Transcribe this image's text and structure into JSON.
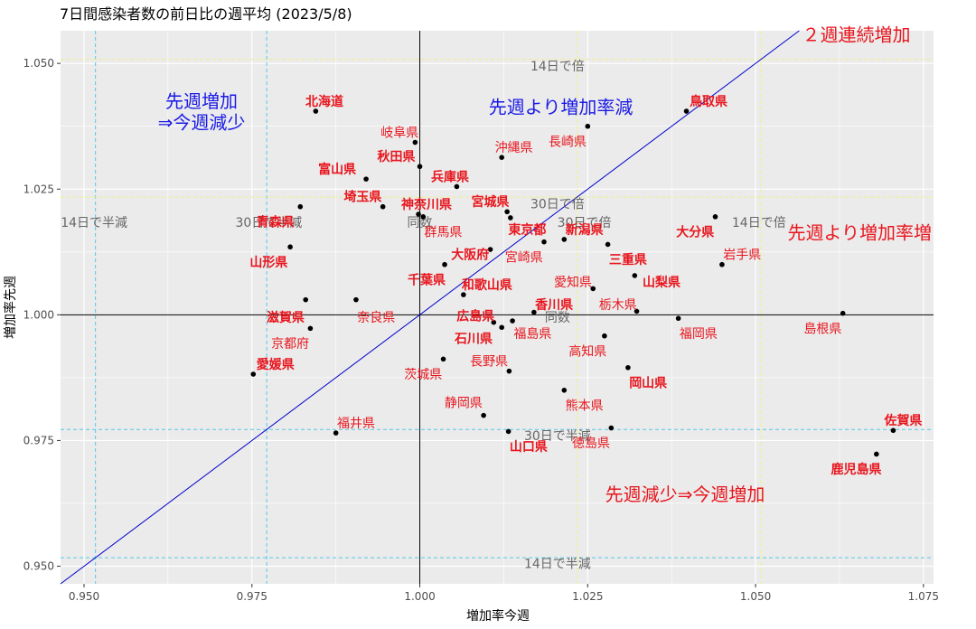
{
  "chart_data": {
    "type": "scatter",
    "title": "7日間感染者数の前日比の週平均 (2023/5/8)",
    "xlabel": "増加率今週",
    "ylabel": "増加率先週",
    "xlim": [
      0.9465,
      1.0765
    ],
    "ylim": [
      0.9465,
      1.0565
    ],
    "x_ticks": [
      "0.950",
      "0.975",
      "1.000",
      "1.025",
      "1.050",
      "1.075"
    ],
    "x_tick_values": [
      0.95,
      0.975,
      1.0,
      1.025,
      1.05,
      1.075
    ],
    "y_ticks": [
      "0.950",
      "0.975",
      "1.000",
      "1.025",
      "1.050"
    ],
    "y_tick_values": [
      0.95,
      0.975,
      1.0,
      1.025,
      1.05
    ],
    "grid": true,
    "colors": {
      "panel": "#ebebeb",
      "grid": "#ffffff",
      "point": "#000000",
      "label_red": "#e8161e",
      "label_blue": "#1a1ae6",
      "diagonal": "#0000cc",
      "ref_cyan": "#56c8e6",
      "ref_yellow": "#f0f08a",
      "ref_text": "#666666"
    },
    "reference_lines": {
      "vertical": [
        {
          "x": 0.9517,
          "color": "cyan"
        },
        {
          "x": 0.9772,
          "color": "cyan"
        },
        {
          "x": 1.0234,
          "color": "yellow"
        },
        {
          "x": 1.0508,
          "color": "yellow"
        }
      ],
      "horizontal": [
        {
          "y": 0.9517,
          "color": "cyan"
        },
        {
          "y": 0.9772,
          "color": "cyan"
        },
        {
          "y": 1.0234,
          "color": "yellow"
        },
        {
          "y": 1.0508,
          "color": "yellow"
        }
      ]
    },
    "reference_labels": [
      {
        "text": "14日で倍",
        "x": 1.0205,
        "y": 1.0495
      },
      {
        "text": "30日で倍",
        "x": 1.0205,
        "y": 1.0221
      },
      {
        "text": "30日で倍",
        "x": 1.0245,
        "y": 1.0184
      },
      {
        "text": "14日で倍",
        "x": 1.0505,
        "y": 1.0184
      },
      {
        "text": "14日で半減",
        "x": 0.9515,
        "y": 1.0184
      },
      {
        "text": "30日で半減",
        "x": 0.9775,
        "y": 1.0184
      },
      {
        "text": "同数",
        "x": 1.0,
        "y": 1.0184
      },
      {
        "text": "同数",
        "x": 1.0205,
        "y": 0.9995
      },
      {
        "text": "30日で半減",
        "x": 1.0205,
        "y": 0.976
      },
      {
        "text": "14日で半減",
        "x": 1.0205,
        "y": 0.9505
      }
    ],
    "annotations": [
      {
        "text": "先週増加",
        "x": 0.9675,
        "y": 1.0425,
        "color": "blue"
      },
      {
        "text": "⇒今週減少",
        "x": 0.9675,
        "y": 1.0383,
        "color": "blue"
      },
      {
        "text": "先週より増加率減",
        "x": 1.021,
        "y": 1.0413,
        "color": "blue"
      },
      {
        "text": "２週連続増加",
        "x": 1.065,
        "y": 1.0557,
        "color": "red"
      },
      {
        "text": "先週より増加率増",
        "x": 1.0655,
        "y": 1.0163,
        "color": "red"
      },
      {
        "text": "先週減少⇒今週増加",
        "x": 1.0395,
        "y": 0.9643,
        "color": "red"
      }
    ],
    "points": [
      {
        "name": "北海道",
        "x": 0.9845,
        "y": 1.0405,
        "lx": 0.9858,
        "ly": 1.0425,
        "bold": true
      },
      {
        "name": "岐阜県",
        "x": 0.9993,
        "y": 1.0343,
        "lx": 0.997,
        "ly": 1.0363,
        "bold": false
      },
      {
        "name": "秋田県",
        "x": 1.0,
        "y": 1.0295,
        "lx": 0.9965,
        "ly": 1.0315,
        "bold": true
      },
      {
        "name": "富山県",
        "x": 0.992,
        "y": 1.027,
        "lx": 0.9877,
        "ly": 1.029,
        "bold": true
      },
      {
        "name": "兵庫県",
        "x": 1.0055,
        "y": 1.0255,
        "lx": 1.0045,
        "ly": 1.0275,
        "bold": true
      },
      {
        "name": "埼玉県",
        "x": 0.9945,
        "y": 1.0215,
        "lx": 0.9915,
        "ly": 1.0235,
        "bold": true
      },
      {
        "name": "神奈川県",
        "x": 0.9998,
        "y": 1.02,
        "lx": 1.001,
        "ly": 1.022,
        "bold": true
      },
      {
        "name": "宮城県",
        "x": 1.013,
        "y": 1.0205,
        "lx": 1.0105,
        "ly": 1.0225,
        "bold": true
      },
      {
        "name": "沖縄県",
        "x": 1.0122,
        "y": 1.0313,
        "lx": 1.014,
        "ly": 1.0333,
        "bold": false
      },
      {
        "name": "長崎県",
        "x": 1.025,
        "y": 1.0375,
        "lx": 1.022,
        "ly": 1.0345,
        "bold": false
      },
      {
        "name": "鳥取県",
        "x": 1.0397,
        "y": 1.0405,
        "lx": 1.043,
        "ly": 1.0425,
        "bold": true
      },
      {
        "name": "青森県",
        "x": 0.9822,
        "y": 1.0215,
        "lx": 0.9785,
        "ly": 1.0185,
        "bold": true
      },
      {
        "name": "群馬県",
        "x": 1.0005,
        "y": 1.0195,
        "lx": 1.0035,
        "ly": 1.0165,
        "bold": false
      },
      {
        "name": "東京都",
        "x": 1.0135,
        "y": 1.0193,
        "lx": 1.016,
        "ly": 1.017,
        "bold": true
      },
      {
        "name": "新潟県",
        "x": 1.0215,
        "y": 1.015,
        "lx": 1.0245,
        "ly": 1.017,
        "bold": true
      },
      {
        "name": "大分県",
        "x": 1.044,
        "y": 1.0195,
        "lx": 1.041,
        "ly": 1.0165,
        "bold": true
      },
      {
        "name": "山形県",
        "x": 0.9807,
        "y": 1.0135,
        "lx": 0.9775,
        "ly": 1.0105,
        "bold": true
      },
      {
        "name": "大阪府",
        "x": 1.0105,
        "y": 1.013,
        "lx": 1.0075,
        "ly": 1.012,
        "bold": true
      },
      {
        "name": "宮崎県",
        "x": 1.0185,
        "y": 1.0145,
        "lx": 1.0155,
        "ly": 1.0115,
        "bold": false
      },
      {
        "name": "三重県",
        "x": 1.028,
        "y": 1.014,
        "lx": 1.031,
        "ly": 1.011,
        "bold": true
      },
      {
        "name": "岩手県",
        "x": 1.045,
        "y": 1.01,
        "lx": 1.048,
        "ly": 1.012,
        "bold": false
      },
      {
        "name": "千葉県",
        "x": 1.0037,
        "y": 1.01,
        "lx": 1.001,
        "ly": 1.007,
        "bold": true
      },
      {
        "name": "和歌山県",
        "x": 1.0065,
        "y": 1.004,
        "lx": 1.01,
        "ly": 1.006,
        "bold": true
      },
      {
        "name": "愛知県",
        "x": 1.0258,
        "y": 1.0052,
        "lx": 1.0228,
        "ly": 1.0065,
        "bold": false
      },
      {
        "name": "山梨県",
        "x": 1.032,
        "y": 1.0078,
        "lx": 1.036,
        "ly": 1.0065,
        "bold": true
      },
      {
        "name": "滋賀県",
        "x": 0.983,
        "y": 1.003,
        "lx": 0.98,
        "ly": 0.9995,
        "bold": true
      },
      {
        "name": "奈良県",
        "x": 0.9905,
        "y": 1.003,
        "lx": 0.9935,
        "ly": 0.9995,
        "bold": false
      },
      {
        "name": "香川県",
        "x": 1.017,
        "y": 1.0005,
        "lx": 1.02,
        "ly": 1.002,
        "bold": true
      },
      {
        "name": "栃木県",
        "x": 1.0323,
        "y": 1.0007,
        "lx": 1.0295,
        "ly": 1.002,
        "bold": false
      },
      {
        "name": "広島県",
        "x": 1.011,
        "y": 0.9985,
        "lx": 1.0083,
        "ly": 0.9998,
        "bold": true
      },
      {
        "name": "福島県",
        "x": 1.0138,
        "y": 0.9988,
        "lx": 1.0168,
        "ly": 0.9963,
        "bold": false
      },
      {
        "name": "福岡県",
        "x": 1.0385,
        "y": 0.9993,
        "lx": 1.0415,
        "ly": 0.9963,
        "bold": false
      },
      {
        "name": "島根県",
        "x": 1.063,
        "y": 1.0003,
        "lx": 1.06,
        "ly": 0.9973,
        "bold": false
      },
      {
        "name": "京都府",
        "x": 0.9837,
        "y": 0.9973,
        "lx": 0.9807,
        "ly": 0.9943,
        "bold": false
      },
      {
        "name": "石川県",
        "x": 1.0122,
        "y": 0.9975,
        "lx": 1.008,
        "ly": 0.9953,
        "bold": true
      },
      {
        "name": "高知県",
        "x": 1.0275,
        "y": 0.9958,
        "lx": 1.025,
        "ly": 0.9928,
        "bold": false
      },
      {
        "name": "愛媛県",
        "x": 0.9752,
        "y": 0.9882,
        "lx": 0.9785,
        "ly": 0.9902,
        "bold": true
      },
      {
        "name": "茨城県",
        "x": 1.0035,
        "y": 0.9912,
        "lx": 1.0005,
        "ly": 0.9882,
        "bold": false
      },
      {
        "name": "長野県",
        "x": 1.0133,
        "y": 0.9888,
        "lx": 1.0103,
        "ly": 0.9908,
        "bold": false
      },
      {
        "name": "岡山県",
        "x": 1.031,
        "y": 0.9895,
        "lx": 1.034,
        "ly": 0.9865,
        "bold": true
      },
      {
        "name": "熊本県",
        "x": 1.0215,
        "y": 0.985,
        "lx": 1.0245,
        "ly": 0.982,
        "bold": false
      },
      {
        "name": "静岡県",
        "x": 1.0095,
        "y": 0.98,
        "lx": 1.0065,
        "ly": 0.9825,
        "bold": false
      },
      {
        "name": "福井県",
        "x": 0.9875,
        "y": 0.9765,
        "lx": 0.9905,
        "ly": 0.9785,
        "bold": false
      },
      {
        "name": "山口県",
        "x": 1.0132,
        "y": 0.9768,
        "lx": 1.0162,
        "ly": 0.9738,
        "bold": true
      },
      {
        "name": "徳島県",
        "x": 1.0285,
        "y": 0.9775,
        "lx": 1.0255,
        "ly": 0.9745,
        "bold": false
      },
      {
        "name": "佐賀県",
        "x": 1.0705,
        "y": 0.977,
        "lx": 1.072,
        "ly": 0.979,
        "bold": true
      },
      {
        "name": "鹿児島県",
        "x": 1.068,
        "y": 0.9723,
        "lx": 1.065,
        "ly": 0.9693,
        "bold": true
      }
    ]
  }
}
